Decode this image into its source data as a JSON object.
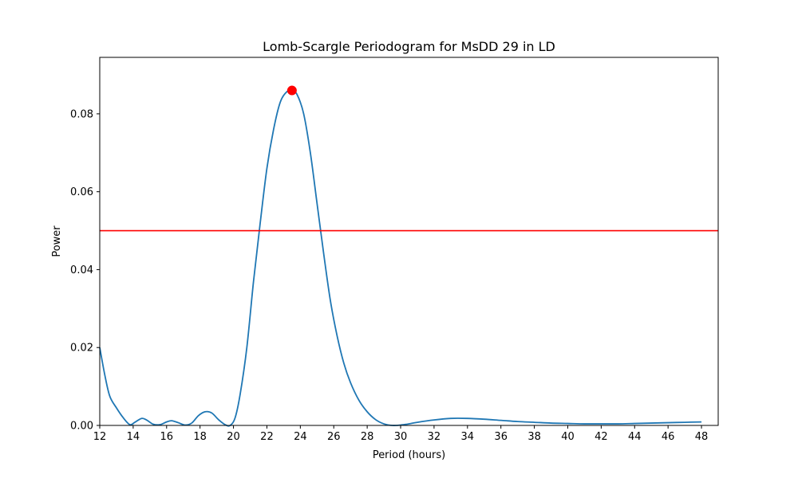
{
  "chart_data": {
    "type": "line",
    "title": "Lomb-Scargle Periodogram for MsDD 29 in LD",
    "xlabel": "Period (hours)",
    "ylabel": "Power",
    "xlim": [
      12,
      49
    ],
    "ylim": [
      0,
      0.0945
    ],
    "x_ticks": [
      12,
      14,
      16,
      18,
      20,
      22,
      24,
      26,
      28,
      30,
      32,
      34,
      36,
      38,
      40,
      42,
      44,
      46,
      48
    ],
    "y_ticks": [
      0.0,
      0.02,
      0.04,
      0.06,
      0.08
    ],
    "y_tick_labels": [
      "0.00",
      "0.02",
      "0.04",
      "0.06",
      "0.08"
    ],
    "grid": false,
    "series": [
      {
        "color": "#1f77b4",
        "points": [
          [
            12.0,
            0.02
          ],
          [
            12.3,
            0.013
          ],
          [
            12.6,
            0.0075
          ],
          [
            13.0,
            0.0045
          ],
          [
            13.4,
            0.002
          ],
          [
            13.8,
            0.0002
          ],
          [
            14.1,
            0.0008
          ],
          [
            14.5,
            0.0018
          ],
          [
            14.8,
            0.0014
          ],
          [
            15.2,
            0.0003
          ],
          [
            15.6,
            0.0002
          ],
          [
            16.0,
            0.0009
          ],
          [
            16.3,
            0.0012
          ],
          [
            16.7,
            0.0007
          ],
          [
            17.1,
            0.0001
          ],
          [
            17.5,
            0.0006
          ],
          [
            17.9,
            0.0025
          ],
          [
            18.3,
            0.0035
          ],
          [
            18.7,
            0.0032
          ],
          [
            19.1,
            0.0015
          ],
          [
            19.5,
            0.0002
          ],
          [
            19.8,
            0.0
          ],
          [
            20.1,
            0.002
          ],
          [
            20.4,
            0.008
          ],
          [
            20.8,
            0.02
          ],
          [
            21.2,
            0.037
          ],
          [
            21.6,
            0.052
          ],
          [
            22.0,
            0.066
          ],
          [
            22.4,
            0.076
          ],
          [
            22.8,
            0.083
          ],
          [
            23.2,
            0.0857
          ],
          [
            23.5,
            0.086
          ],
          [
            23.8,
            0.085
          ],
          [
            24.2,
            0.08
          ],
          [
            24.6,
            0.07
          ],
          [
            25.0,
            0.057
          ],
          [
            25.4,
            0.044
          ],
          [
            25.8,
            0.032
          ],
          [
            26.2,
            0.023
          ],
          [
            26.6,
            0.016
          ],
          [
            27.0,
            0.011
          ],
          [
            27.5,
            0.0065
          ],
          [
            28.0,
            0.0035
          ],
          [
            28.5,
            0.0015
          ],
          [
            29.0,
            0.0004
          ],
          [
            29.5,
            0.0
          ],
          [
            30.0,
            0.0001
          ],
          [
            30.5,
            0.0004
          ],
          [
            31.0,
            0.0008
          ],
          [
            32.0,
            0.0014
          ],
          [
            33.0,
            0.0018
          ],
          [
            34.0,
            0.0018
          ],
          [
            35.0,
            0.0016
          ],
          [
            36.0,
            0.0013
          ],
          [
            37.0,
            0.001
          ],
          [
            38.0,
            0.0008
          ],
          [
            39.0,
            0.0006
          ],
          [
            40.0,
            0.0005
          ],
          [
            41.0,
            0.0004
          ],
          [
            42.0,
            0.0004
          ],
          [
            43.0,
            0.0004
          ],
          [
            44.0,
            0.0005
          ],
          [
            45.0,
            0.0006
          ],
          [
            46.0,
            0.0007
          ],
          [
            47.0,
            0.0008
          ],
          [
            48.0,
            0.0009
          ]
        ]
      }
    ],
    "peak": {
      "x": 23.5,
      "y": 0.086,
      "color": "#ff0000"
    },
    "threshold": {
      "y": 0.05,
      "color": "#ff0000"
    }
  }
}
